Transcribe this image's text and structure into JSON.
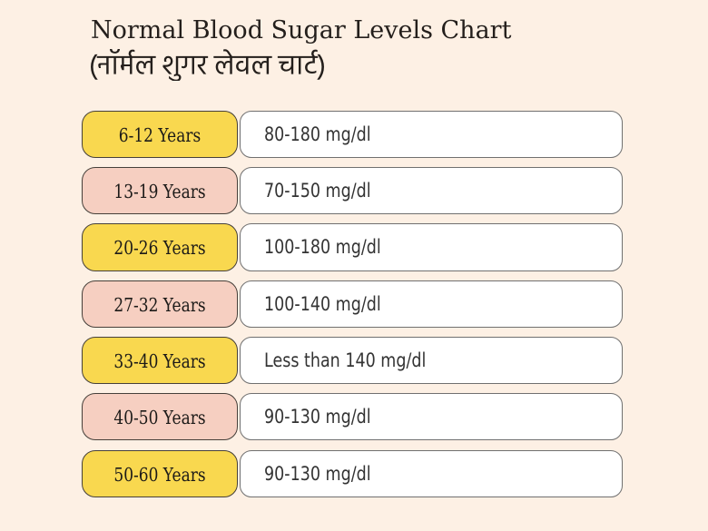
{
  "header": {
    "title": "Normal Blood Sugar Levels Chart",
    "subtitle": "(नॉर्मल शुगर लेवल चार्ट)"
  },
  "chart_data": {
    "type": "table",
    "title": "Normal Blood Sugar Levels Chart",
    "subtitle": "(नॉर्मल शुगर लेवल चार्ट)",
    "rows": [
      {
        "age": "6-12 Years",
        "value": "80-180 mg/dl",
        "pill_color": "yellow"
      },
      {
        "age": "13-19 Years",
        "value": "70-150 mg/dl",
        "pill_color": "pink"
      },
      {
        "age": "20-26 Years",
        "value": "100-180 mg/dl",
        "pill_color": "yellow"
      },
      {
        "age": "27-32 Years",
        "value": "100-140 mg/dl",
        "pill_color": "pink"
      },
      {
        "age": "33-40 Years",
        "value": "Less than 140 mg/dl",
        "pill_color": "yellow"
      },
      {
        "age": "40-50 Years",
        "value": "90-130 mg/dl",
        "pill_color": "pink"
      },
      {
        "age": "50-60 Years",
        "value": "90-130 mg/dl",
        "pill_color": "yellow"
      }
    ]
  },
  "colors": {
    "background": "#FDF0E4",
    "pill_yellow": "#F9D84F",
    "pill_pink": "#F6CFC1",
    "pill_border": "#46403A",
    "pill_label_text": "#1C1A18",
    "value_box_background": "#FFFFFF",
    "value_box_border": "#707070",
    "value_text": "#333333",
    "title_text": "#241F1C"
  }
}
